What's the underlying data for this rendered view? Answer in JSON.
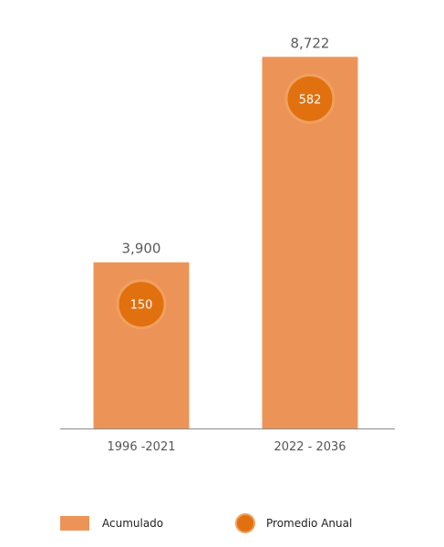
{
  "colors": {
    "bar": "#ec9457",
    "dot": "#e1700f",
    "dot_ring": "#f0a05f",
    "axis": "#8c8c8c"
  },
  "chart_data": {
    "type": "bar",
    "categories": [
      "1996 -2021",
      "2022 - 2036"
    ],
    "series": [
      {
        "name": "Acumulado",
        "values": [
          3900,
          8722
        ],
        "value_labels": [
          "3,900",
          "8,722"
        ]
      },
      {
        "name": "Promedio Anual",
        "values": [
          150,
          582
        ],
        "value_labels": [
          "150",
          "582"
        ]
      }
    ],
    "ylim": [
      0,
      9500
    ],
    "grid": false,
    "legend_position": "bottom"
  },
  "legend": {
    "items": [
      {
        "label": "Acumulado",
        "marker": "square-swatch"
      },
      {
        "label": "Promedio Anual",
        "marker": "circle-dot"
      }
    ]
  }
}
